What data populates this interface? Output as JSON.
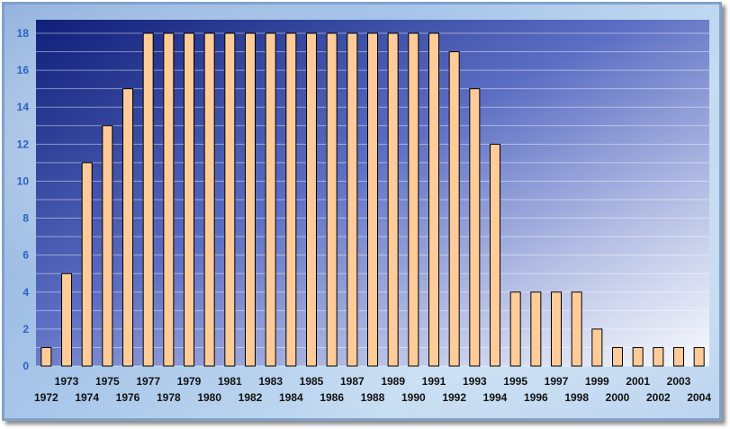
{
  "chart_data": {
    "type": "bar",
    "categories": [
      "1972",
      "1973",
      "1974",
      "1975",
      "1976",
      "1977",
      "1978",
      "1979",
      "1980",
      "1981",
      "1982",
      "1983",
      "1984",
      "1985",
      "1986",
      "1987",
      "1988",
      "1989",
      "1990",
      "1991",
      "1992",
      "1993",
      "1994",
      "1995",
      "1996",
      "1997",
      "1998",
      "1999",
      "2000",
      "2001",
      "2002",
      "2003",
      "2004"
    ],
    "values": [
      1,
      5,
      11,
      13,
      15,
      18,
      18,
      18,
      18,
      18,
      18,
      18,
      18,
      18,
      18,
      18,
      18,
      18,
      18,
      18,
      17,
      15,
      12,
      4,
      4,
      4,
      4,
      2,
      1,
      1,
      1,
      1,
      1
    ],
    "ylim": [
      0,
      18
    ],
    "yticks": [
      0,
      2,
      4,
      6,
      8,
      10,
      12,
      14,
      16,
      18
    ],
    "grid": true,
    "legend": "none",
    "colors": {
      "bar_fill": "#ffcc99",
      "bar_stroke": "#000000",
      "plot_top": "#0f1f7a",
      "plot_bottom": "#ffffff",
      "ytick": "#2a62c4",
      "xtick": "#111111",
      "frame": "#7fa3c8"
    }
  }
}
